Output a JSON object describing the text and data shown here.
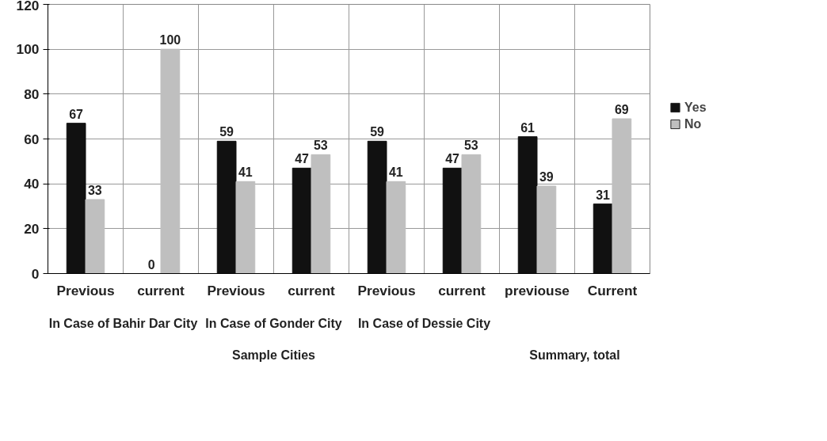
{
  "chart_data": {
    "type": "bar",
    "categories": [
      "Previous",
      "current",
      "Previous",
      "current",
      "Previous",
      "current",
      "previouse",
      "Current"
    ],
    "series": [
      {
        "name": "Yes",
        "color": "#111111",
        "values": [
          67,
          0,
          59,
          47,
          59,
          47,
          61,
          31
        ]
      },
      {
        "name": "No",
        "color": "#bfbfbf",
        "values": [
          33,
          100,
          41,
          53,
          41,
          53,
          39,
          69
        ]
      }
    ],
    "annotations": [
      "In Case of Bahir Dar City",
      "In Case of Gonder City",
      "In Case of Dessie City",
      "Sample Cities",
      "Summary, total"
    ],
    "ylim": [
      0,
      120
    ],
    "yticks": [
      0,
      20,
      40,
      60,
      80,
      100,
      120
    ],
    "grid": true,
    "legend": "right",
    "data_labels": true
  }
}
